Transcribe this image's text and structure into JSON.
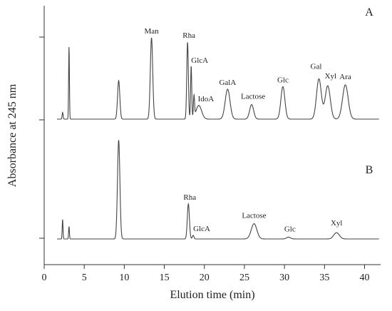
{
  "chart_data": {
    "type": "line",
    "xlabel": "Elution time (min)",
    "ylabel": "Absorbance at 245 nm",
    "xlim": [
      0,
      42
    ],
    "x_ticks": [
      0,
      5,
      10,
      15,
      20,
      25,
      30,
      35,
      40
    ],
    "grid": false,
    "panels": [
      {
        "name": "A",
        "peaks": [
          {
            "x": 2.3,
            "height": 0.08,
            "width": 0.06,
            "label": ""
          },
          {
            "x": 3.1,
            "height": 0.85,
            "width": 0.05,
            "label": ""
          },
          {
            "x": 9.3,
            "height": 0.45,
            "width": 0.14,
            "label": ""
          },
          {
            "x": 13.4,
            "height": 0.95,
            "width": 0.15,
            "label": "Man"
          },
          {
            "x": 17.9,
            "height": 0.9,
            "width": 0.1,
            "label": "Rha"
          },
          {
            "x": 18.35,
            "height": 0.62,
            "width": 0.07,
            "label": "GlcA"
          },
          {
            "x": 18.7,
            "height": 0.25,
            "width": 0.07,
            "label": ""
          },
          {
            "x": 19.3,
            "height": 0.16,
            "width": 0.35,
            "label": "IdoA"
          },
          {
            "x": 22.9,
            "height": 0.35,
            "width": 0.3,
            "label": "GalA"
          },
          {
            "x": 25.9,
            "height": 0.17,
            "width": 0.25,
            "label": "Lactose"
          },
          {
            "x": 29.8,
            "height": 0.38,
            "width": 0.25,
            "label": "Glc"
          },
          {
            "x": 34.3,
            "height": 0.47,
            "width": 0.3,
            "label": "Gal"
          },
          {
            "x": 35.4,
            "height": 0.39,
            "width": 0.32,
            "label": "Xyl"
          },
          {
            "x": 37.6,
            "height": 0.4,
            "width": 0.35,
            "label": "Ara"
          }
        ]
      },
      {
        "name": "B",
        "peaks": [
          {
            "x": 2.3,
            "height": 0.22,
            "width": 0.05,
            "label": ""
          },
          {
            "x": 3.1,
            "height": 0.14,
            "width": 0.05,
            "label": ""
          },
          {
            "x": 9.3,
            "height": 1.1,
            "width": 0.15,
            "label": ""
          },
          {
            "x": 18.0,
            "height": 0.39,
            "width": 0.13,
            "label": "Rha"
          },
          {
            "x": 18.6,
            "height": 0.04,
            "width": 0.1,
            "label": "GlcA"
          },
          {
            "x": 26.2,
            "height": 0.17,
            "width": 0.35,
            "label": "Lactose"
          },
          {
            "x": 30.5,
            "height": 0.02,
            "width": 0.25,
            "label": "Glc"
          },
          {
            "x": 36.5,
            "height": 0.07,
            "width": 0.35,
            "label": "Xyl"
          }
        ]
      }
    ]
  }
}
